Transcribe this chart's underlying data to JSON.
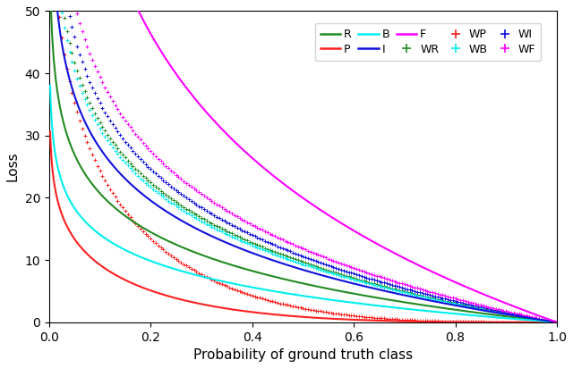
{
  "xlabel": "Probability of ground truth class",
  "ylabel": "Loss",
  "xlim": [
    0.0,
    1.0
  ],
  "ylim": [
    0.0,
    50.0
  ],
  "yticks": [
    0,
    10,
    20,
    30,
    40,
    50
  ],
  "xticks": [
    0.0,
    0.2,
    0.4,
    0.6,
    0.8,
    1.0
  ],
  "colors": {
    "R": "#228B22",
    "P": "#ff2020",
    "B": "#00eeee",
    "I": "#1010dd",
    "F": "#ff00ff"
  },
  "w_lines": {
    "R": 1.0,
    "P": 0.55,
    "B": 0.68,
    "I": 1.35,
    "F": 3.2
  },
  "w_scatter": {
    "WR": 1.55,
    "WP": 1.45,
    "WB": 1.5,
    "WI": 1.7,
    "WF": 1.9
  },
  "scatter_step": 0.005,
  "figsize": [
    6.4,
    4.12
  ],
  "dpi": 100
}
